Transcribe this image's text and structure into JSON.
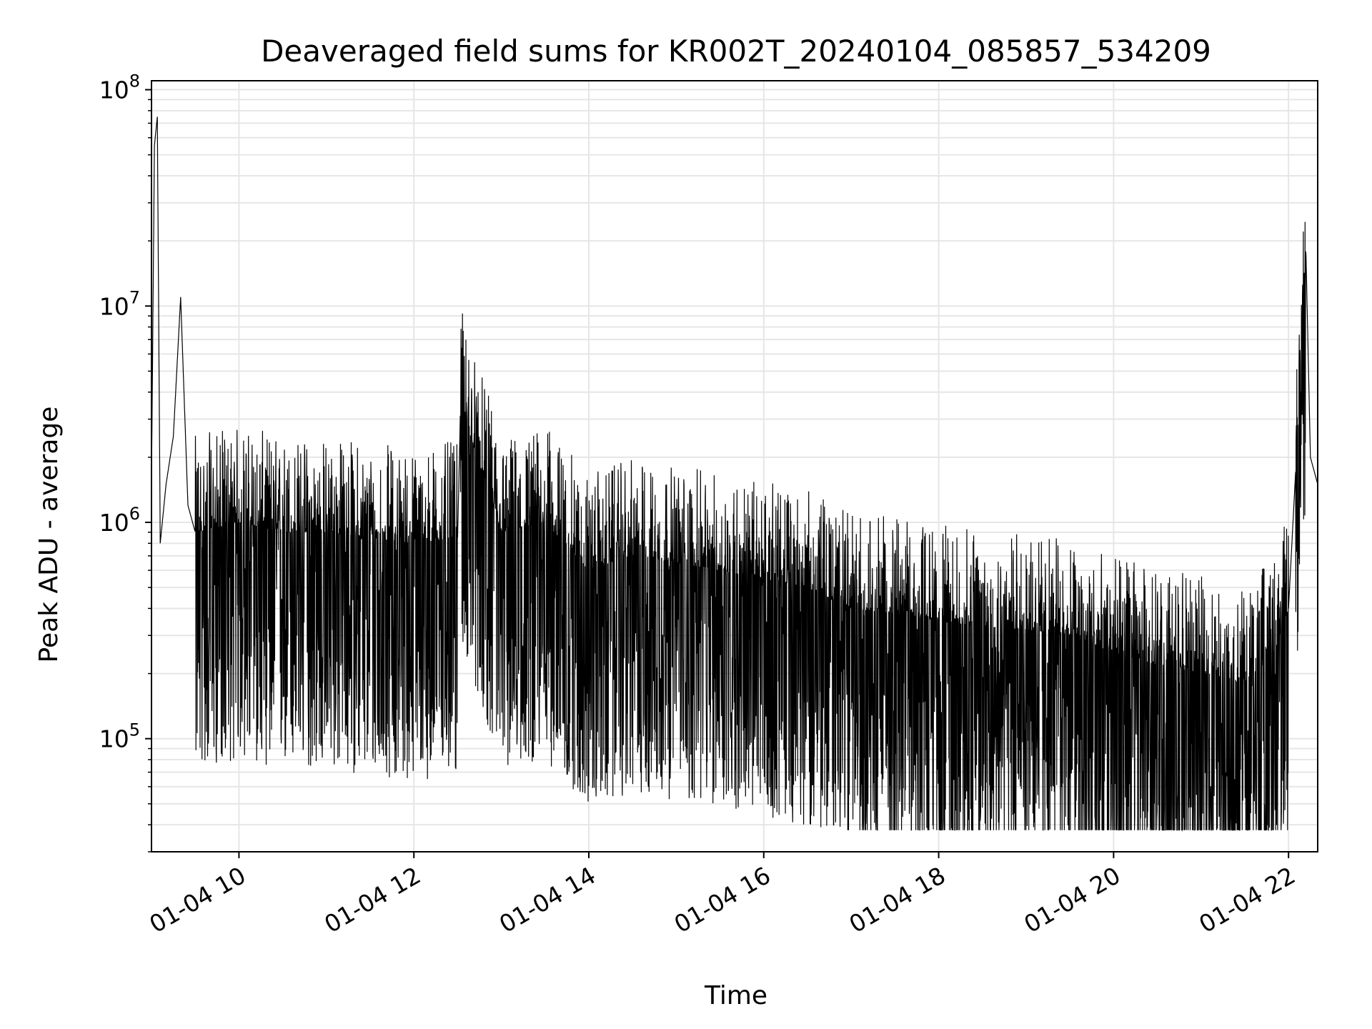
{
  "chart_data": {
    "type": "line",
    "title": "Deaveraged field sums for KR002T_20240104_085857_534209",
    "xlabel": "Time",
    "ylabel": "Peak ADU - average",
    "y_scale": "log",
    "ylim": [
      30000,
      110000000
    ],
    "xlim": [
      "2024-01-04 09:00",
      "2024-01-04 22:20"
    ],
    "grid": true,
    "line_color": "#000000",
    "x_ticks": [
      {
        "t": "2024-01-04 10:00",
        "label": "01-04 10"
      },
      {
        "t": "2024-01-04 12:00",
        "label": "01-04 12"
      },
      {
        "t": "2024-01-04 14:00",
        "label": "01-04 14"
      },
      {
        "t": "2024-01-04 16:00",
        "label": "01-04 16"
      },
      {
        "t": "2024-01-04 18:00",
        "label": "01-04 18"
      },
      {
        "t": "2024-01-04 20:00",
        "label": "01-04 20"
      },
      {
        "t": "2024-01-04 22:00",
        "label": "01-04 22"
      }
    ],
    "y_ticks": [
      {
        "value": 100000,
        "base": "10",
        "exp": "5"
      },
      {
        "value": 1000000,
        "base": "10",
        "exp": "6"
      },
      {
        "value": 10000000,
        "base": "10",
        "exp": "7"
      },
      {
        "value": 100000000,
        "base": "10",
        "exp": "8"
      }
    ],
    "series": [
      {
        "points": [
          [
            "2024-01-04 09:00",
            1500000
          ],
          [
            "2024-01-04 09:02",
            55000000
          ],
          [
            "2024-01-04 09:04",
            75000000
          ],
          [
            "2024-01-04 09:06",
            800000
          ],
          [
            "2024-01-04 09:10",
            1500000
          ],
          [
            "2024-01-04 09:15",
            2500000
          ],
          [
            "2024-01-04 09:20",
            11000000
          ],
          [
            "2024-01-04 09:25",
            1200000
          ],
          [
            "2024-01-04 09:30",
            900000
          ],
          [
            "2024-01-04 10:00",
            1000000
          ],
          [
            "2024-01-04 10:30",
            900000
          ],
          [
            "2024-01-04 11:00",
            900000
          ],
          [
            "2024-01-04 11:30",
            850000
          ],
          [
            "2024-01-04 12:00",
            800000
          ],
          [
            "2024-01-04 12:30",
            850000
          ],
          [
            "2024-01-04 12:32",
            3500000
          ],
          [
            "2024-01-04 13:00",
            900000
          ],
          [
            "2024-01-04 13:30",
            1000000
          ],
          [
            "2024-01-04 14:00",
            600000
          ],
          [
            "2024-01-04 14:30",
            700000
          ],
          [
            "2024-01-04 15:00",
            650000
          ],
          [
            "2024-01-04 15:30",
            600000
          ],
          [
            "2024-01-04 16:00",
            550000
          ],
          [
            "2024-01-04 16:30",
            500000
          ],
          [
            "2024-01-04 17:00",
            400000
          ],
          [
            "2024-01-04 17:30",
            380000
          ],
          [
            "2024-01-04 18:00",
            350000
          ],
          [
            "2024-01-04 18:30",
            330000
          ],
          [
            "2024-01-04 19:00",
            320000
          ],
          [
            "2024-01-04 19:30",
            300000
          ],
          [
            "2024-01-04 20:00",
            250000
          ],
          [
            "2024-01-04 20:30",
            220000
          ],
          [
            "2024-01-04 21:00",
            200000
          ],
          [
            "2024-01-04 21:30",
            180000
          ],
          [
            "2024-01-04 21:50",
            250000
          ],
          [
            "2024-01-04 22:00",
            400000
          ],
          [
            "2024-01-04 22:05",
            1800000
          ],
          [
            "2024-01-04 22:12",
            17000000
          ],
          [
            "2024-01-04 22:15",
            2000000
          ],
          [
            "2024-01-04 22:20",
            1500000
          ]
        ]
      }
    ]
  }
}
